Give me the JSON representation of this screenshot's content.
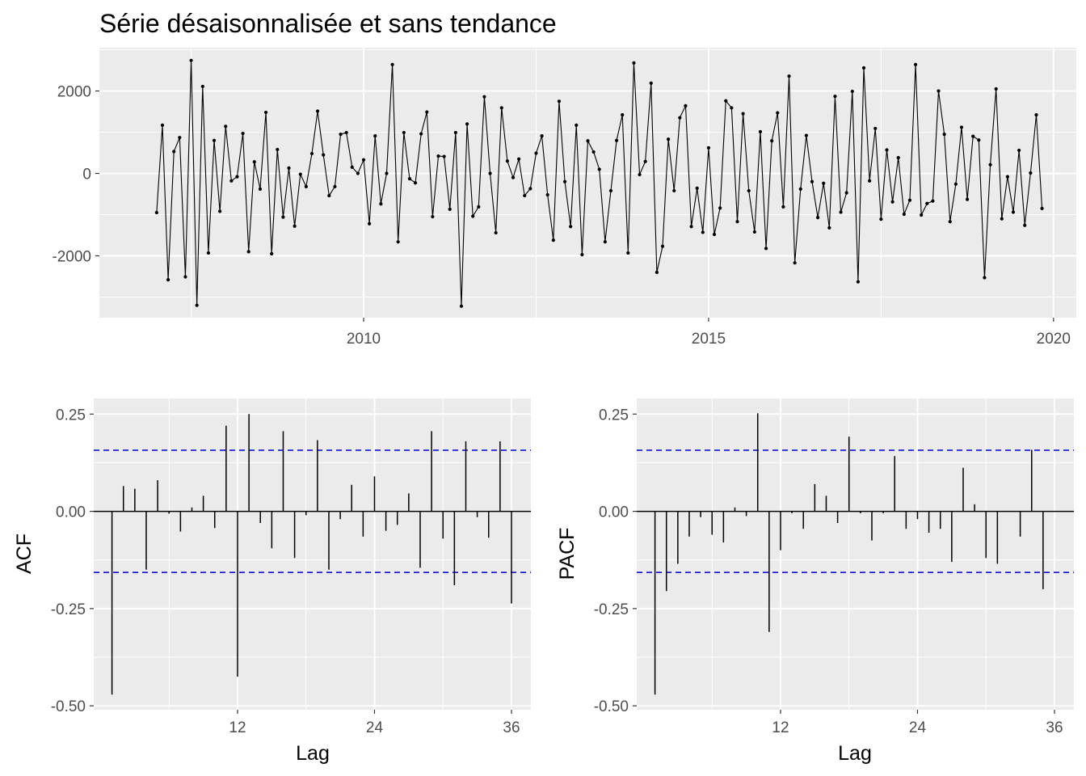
{
  "chart_data": [
    {
      "type": "line",
      "title": "Série désaisonnalisée et sans tendance",
      "xlabel": "",
      "ylabel": "",
      "x_start": 2007.0,
      "x_step_months": 1,
      "xlim": [
        2006.17,
        2020.33
      ],
      "ylim": [
        -3500,
        3050
      ],
      "xticks": [
        2010,
        2015,
        2020
      ],
      "yticks": [
        -2000,
        0,
        2000
      ],
      "ytick_labels": [
        "-2000",
        "0",
        "2000"
      ],
      "values": [
        -950,
        1170,
        -2580,
        530,
        870,
        -2510,
        2740,
        -3200,
        2110,
        -1930,
        800,
        -920,
        1140,
        -180,
        -80,
        970,
        -1900,
        280,
        -380,
        1480,
        -1950,
        580,
        -1060,
        130,
        -1280,
        -20,
        -320,
        480,
        1510,
        450,
        -540,
        -320,
        950,
        990,
        150,
        0,
        330,
        -1220,
        910,
        -740,
        0,
        2640,
        -1660,
        990,
        -130,
        -230,
        960,
        1490,
        -1050,
        420,
        410,
        -870,
        990,
        -3220,
        1200,
        -1040,
        -810,
        1860,
        0,
        -1440,
        1590,
        300,
        -100,
        350,
        -540,
        -370,
        490,
        910,
        -520,
        -1620,
        1750,
        -200,
        -1290,
        1170,
        -1970,
        790,
        520,
        100,
        -1660,
        -420,
        800,
        1420,
        -1930,
        2680,
        -30,
        290,
        2190,
        -2400,
        -1770,
        830,
        -420,
        1350,
        1640,
        -1290,
        -360,
        -1430,
        620,
        -1480,
        -840,
        1760,
        1590,
        -1170,
        1450,
        -420,
        -1420,
        1010,
        -1820,
        790,
        1470,
        -810,
        2360,
        -2170,
        -380,
        920,
        -200,
        -1070,
        -240,
        -1320,
        1870,
        -940,
        -470,
        1990,
        -2630,
        2560,
        -180,
        1090,
        -1110,
        570,
        -690,
        380,
        -990,
        -650,
        2640,
        -1010,
        -730,
        -670,
        2000,
        950,
        -1170,
        -260,
        1120,
        -630,
        900,
        810,
        -2530,
        210,
        2050,
        -1100,
        -80,
        -940,
        560,
        -1260,
        10,
        1420,
        -850
      ]
    },
    {
      "type": "bar",
      "title": "",
      "xlabel": "Lag",
      "ylabel": "ACF",
      "lags": [
        1,
        2,
        3,
        4,
        5,
        6,
        7,
        8,
        9,
        10,
        11,
        12,
        13,
        14,
        15,
        16,
        17,
        18,
        19,
        20,
        21,
        22,
        23,
        24,
        25,
        26,
        27,
        28,
        29,
        30,
        31,
        32,
        33,
        34,
        35,
        36
      ],
      "values": [
        -0.471,
        0.065,
        0.058,
        -0.15,
        0.08,
        -0.006,
        -0.052,
        0.01,
        0.04,
        -0.043,
        0.22,
        -0.425,
        0.25,
        -0.03,
        -0.095,
        0.206,
        -0.12,
        -0.01,
        0.183,
        -0.15,
        -0.02,
        0.068,
        -0.065,
        0.09,
        -0.05,
        -0.035,
        0.046,
        -0.145,
        0.206,
        -0.07,
        -0.19,
        0.18,
        -0.015,
        -0.068,
        0.18,
        -0.237
      ],
      "confidence_bound": 0.157,
      "xticks": [
        12,
        24,
        36
      ],
      "yticks": [
        -0.5,
        -0.25,
        0,
        0.25
      ],
      "ytick_labels": [
        "-0.50",
        "-0.25",
        "0.00",
        "0.25"
      ],
      "xlim": [
        -0.6,
        37.7
      ],
      "ylim": [
        -0.51,
        0.29
      ]
    },
    {
      "type": "bar",
      "title": "",
      "xlabel": "Lag",
      "ylabel": "PACF",
      "lags": [
        1,
        2,
        3,
        4,
        5,
        6,
        7,
        8,
        9,
        10,
        11,
        12,
        13,
        14,
        15,
        16,
        17,
        18,
        19,
        20,
        21,
        22,
        23,
        24,
        25,
        26,
        27,
        28,
        29,
        30,
        31,
        32,
        33,
        34,
        35,
        36
      ],
      "values": [
        -0.471,
        -0.205,
        -0.135,
        -0.065,
        -0.015,
        -0.06,
        -0.08,
        0.01,
        -0.012,
        0.252,
        -0.31,
        -0.1,
        -0.005,
        -0.045,
        0.07,
        0.04,
        -0.03,
        0.192,
        -0.005,
        -0.075,
        -0.005,
        0.142,
        -0.045,
        -0.02,
        -0.055,
        -0.045,
        -0.13,
        0.112,
        0.018,
        -0.12,
        -0.135,
        0,
        -0.065,
        0.158,
        -0.2,
        0
      ],
      "confidence_bound": 0.157,
      "xticks": [
        12,
        24,
        36
      ],
      "yticks": [
        -0.5,
        -0.25,
        0,
        0.25
      ],
      "ytick_labels": [
        "-0.50",
        "-0.25",
        "0.00",
        "0.25"
      ],
      "xlim": [
        -0.6,
        37.7
      ],
      "ylim": [
        -0.51,
        0.29
      ]
    }
  ],
  "colors": {
    "panel": "#ebebeb",
    "grid": "#ffffff",
    "series": "#000000",
    "confidence": "#0000cc",
    "tick_text": "#4d4d4d"
  }
}
